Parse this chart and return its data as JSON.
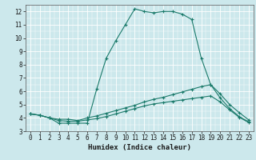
{
  "title": "",
  "xlabel": "Humidex (Indice chaleur)",
  "bg_color": "#cce8ec",
  "line_color": "#1a7a6a",
  "grid_color": "#ffffff",
  "xlim": [
    -0.5,
    23.5
  ],
  "ylim": [
    3,
    12.5
  ],
  "xticks": [
    0,
    1,
    2,
    3,
    4,
    5,
    6,
    7,
    8,
    9,
    10,
    11,
    12,
    13,
    14,
    15,
    16,
    17,
    18,
    19,
    20,
    21,
    22,
    23
  ],
  "yticks": [
    3,
    4,
    5,
    6,
    7,
    8,
    9,
    10,
    11,
    12
  ],
  "series": [
    {
      "x": [
        0,
        1,
        2,
        3,
        4,
        5,
        6,
        7,
        8,
        9,
        10,
        11,
        12,
        13,
        14,
        15,
        16,
        17,
        18,
        19,
        20,
        21,
        22,
        23
      ],
      "y": [
        4.3,
        4.2,
        4.0,
        3.6,
        3.6,
        3.6,
        3.6,
        6.2,
        8.5,
        9.8,
        11.0,
        12.2,
        12.0,
        11.9,
        12.0,
        12.0,
        11.8,
        11.4,
        8.5,
        6.5,
        5.5,
        4.7,
        4.1,
        3.7
      ]
    },
    {
      "x": [
        0,
        1,
        2,
        3,
        4,
        5,
        6,
        7,
        8,
        9,
        10,
        11,
        12,
        13,
        14,
        15,
        16,
        17,
        18,
        19,
        20,
        21,
        22,
        23
      ],
      "y": [
        4.3,
        4.2,
        4.0,
        3.9,
        3.9,
        3.8,
        4.0,
        4.15,
        4.35,
        4.55,
        4.75,
        4.95,
        5.2,
        5.4,
        5.55,
        5.75,
        5.95,
        6.15,
        6.35,
        6.5,
        5.8,
        5.0,
        4.4,
        3.85
      ]
    },
    {
      "x": [
        0,
        1,
        2,
        3,
        4,
        5,
        6,
        7,
        8,
        9,
        10,
        11,
        12,
        13,
        14,
        15,
        16,
        17,
        18,
        19,
        20,
        21,
        22,
        23
      ],
      "y": [
        4.3,
        4.2,
        4.0,
        3.8,
        3.75,
        3.75,
        3.85,
        3.95,
        4.1,
        4.3,
        4.5,
        4.7,
        4.9,
        5.05,
        5.15,
        5.25,
        5.35,
        5.45,
        5.55,
        5.65,
        5.2,
        4.6,
        4.05,
        3.65
      ]
    }
  ],
  "marker": "+",
  "markersize": 3,
  "linewidth": 0.8,
  "font_size": 5.5,
  "xlabel_fontsize": 6.5
}
